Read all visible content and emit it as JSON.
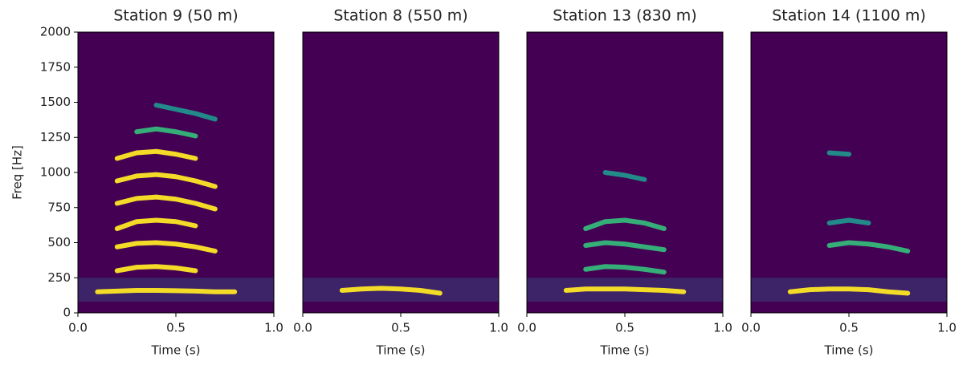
{
  "chart_data": [
    {
      "type": "line",
      "title": "Station 9 (50 m)",
      "xlabel": "Time (s)",
      "ylabel": "Freq [Hz]",
      "background": "#440154",
      "xlim": [
        0,
        1
      ],
      "ylim": [
        0,
        2000
      ],
      "xticks": [
        {
          "value": 0,
          "label": "0.0"
        },
        {
          "value": 0.5,
          "label": "0.5"
        },
        {
          "value": 1,
          "label": "1.0"
        }
      ],
      "yticks": [
        0,
        250,
        500,
        750,
        1000,
        1250,
        1500,
        1750,
        2000
      ],
      "x": [
        0.1,
        0.2,
        0.3,
        0.4,
        0.5,
        0.6,
        0.7,
        0.8
      ],
      "series": [
        {
          "color": "#fde725",
          "values": [
            150,
            155,
            160,
            160,
            158,
            155,
            150,
            150
          ]
        },
        {
          "color": "#fde725",
          "values": [
            null,
            300,
            325,
            330,
            320,
            300,
            null,
            null
          ]
        },
        {
          "color": "#fde725",
          "values": [
            null,
            470,
            495,
            500,
            490,
            470,
            440,
            null
          ]
        },
        {
          "color": "#fde725",
          "values": [
            null,
            600,
            650,
            660,
            650,
            620,
            null,
            null
          ]
        },
        {
          "color": "#fde725",
          "values": [
            null,
            780,
            815,
            825,
            810,
            780,
            740,
            null
          ]
        },
        {
          "color": "#fde725",
          "values": [
            null,
            940,
            975,
            985,
            970,
            940,
            900,
            null
          ]
        },
        {
          "color": "#fde725",
          "values": [
            null,
            1100,
            1140,
            1150,
            1130,
            1100,
            null,
            null
          ]
        },
        {
          "color": "#35b779",
          "values": [
            null,
            null,
            1290,
            1310,
            1290,
            1260,
            null,
            null
          ]
        },
        {
          "color": "#21918c",
          "values": [
            null,
            null,
            null,
            1480,
            1450,
            1420,
            1380,
            null
          ]
        }
      ]
    },
    {
      "type": "line",
      "title": "Station 8 (550 m)",
      "xlabel": "Time (s)",
      "background": "#440154",
      "xlim": [
        0,
        1
      ],
      "ylim": [
        0,
        2000
      ],
      "xticks": [
        {
          "value": 0,
          "label": "0.0"
        },
        {
          "value": 0.5,
          "label": "0.5"
        },
        {
          "value": 1,
          "label": "1.0"
        }
      ],
      "x": [
        0.1,
        0.2,
        0.3,
        0.4,
        0.5,
        0.6,
        0.7,
        0.8
      ],
      "series": [
        {
          "color": "#fde725",
          "values": [
            null,
            160,
            170,
            175,
            170,
            160,
            140,
            null
          ]
        }
      ]
    },
    {
      "type": "line",
      "title": "Station 13 (830 m)",
      "xlabel": "Time (s)",
      "background": "#440154",
      "xlim": [
        0,
        1
      ],
      "ylim": [
        0,
        2000
      ],
      "xticks": [
        {
          "value": 0,
          "label": "0.0"
        },
        {
          "value": 0.5,
          "label": "0.5"
        },
        {
          "value": 1,
          "label": "1.0"
        }
      ],
      "x": [
        0.1,
        0.2,
        0.3,
        0.4,
        0.5,
        0.6,
        0.7,
        0.8
      ],
      "series": [
        {
          "color": "#fde725",
          "values": [
            null,
            160,
            170,
            170,
            170,
            165,
            160,
            150
          ]
        },
        {
          "color": "#35b779",
          "values": [
            null,
            null,
            310,
            330,
            325,
            310,
            290,
            null
          ]
        },
        {
          "color": "#35b779",
          "values": [
            null,
            null,
            480,
            500,
            490,
            470,
            450,
            null
          ]
        },
        {
          "color": "#35b779",
          "values": [
            null,
            null,
            600,
            650,
            660,
            640,
            600,
            null
          ]
        },
        {
          "color": "#21918c",
          "values": [
            null,
            null,
            null,
            1000,
            980,
            950,
            null,
            null
          ]
        }
      ]
    },
    {
      "type": "line",
      "title": "Station 14 (1100 m)",
      "xlabel": "Time (s)",
      "background": "#440154",
      "xlim": [
        0,
        1
      ],
      "ylim": [
        0,
        2000
      ],
      "xticks": [
        {
          "value": 0,
          "label": "0.0"
        },
        {
          "value": 0.5,
          "label": "0.5"
        },
        {
          "value": 1,
          "label": "1.0"
        }
      ],
      "x": [
        0.1,
        0.2,
        0.3,
        0.4,
        0.5,
        0.6,
        0.7,
        0.8
      ],
      "series": [
        {
          "color": "#fde725",
          "values": [
            null,
            150,
            165,
            170,
            170,
            165,
            150,
            140
          ]
        },
        {
          "color": "#35b779",
          "values": [
            null,
            null,
            null,
            480,
            500,
            490,
            470,
            440
          ]
        },
        {
          "color": "#21918c",
          "values": [
            null,
            null,
            null,
            640,
            660,
            640,
            null,
            null
          ]
        },
        {
          "color": "#21918c",
          "values": [
            null,
            null,
            null,
            1140,
            1130,
            null,
            null,
            null
          ]
        }
      ]
    }
  ]
}
